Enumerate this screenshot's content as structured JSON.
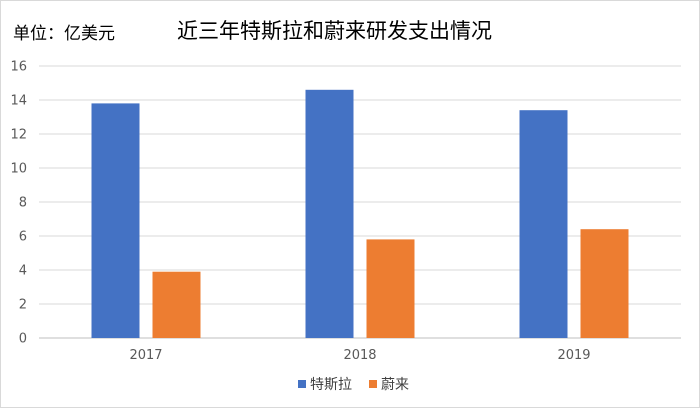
{
  "chart_data": {
    "type": "bar",
    "title": "近三年特斯拉和蔚来研发支出情况",
    "unit_label": "单位：亿美元",
    "categories": [
      "2017",
      "2018",
      "2019"
    ],
    "series": [
      {
        "name": "特斯拉",
        "values": [
          13.8,
          14.6,
          13.4
        ],
        "color": "#4472C4"
      },
      {
        "name": "蔚来",
        "values": [
          3.9,
          5.8,
          6.4
        ],
        "color": "#ED7D31"
      }
    ],
    "ylim": [
      0,
      16
    ],
    "yticks": [
      0,
      2,
      4,
      6,
      8,
      10,
      12,
      14,
      16
    ],
    "grid": true,
    "legend_position": "bottom"
  }
}
